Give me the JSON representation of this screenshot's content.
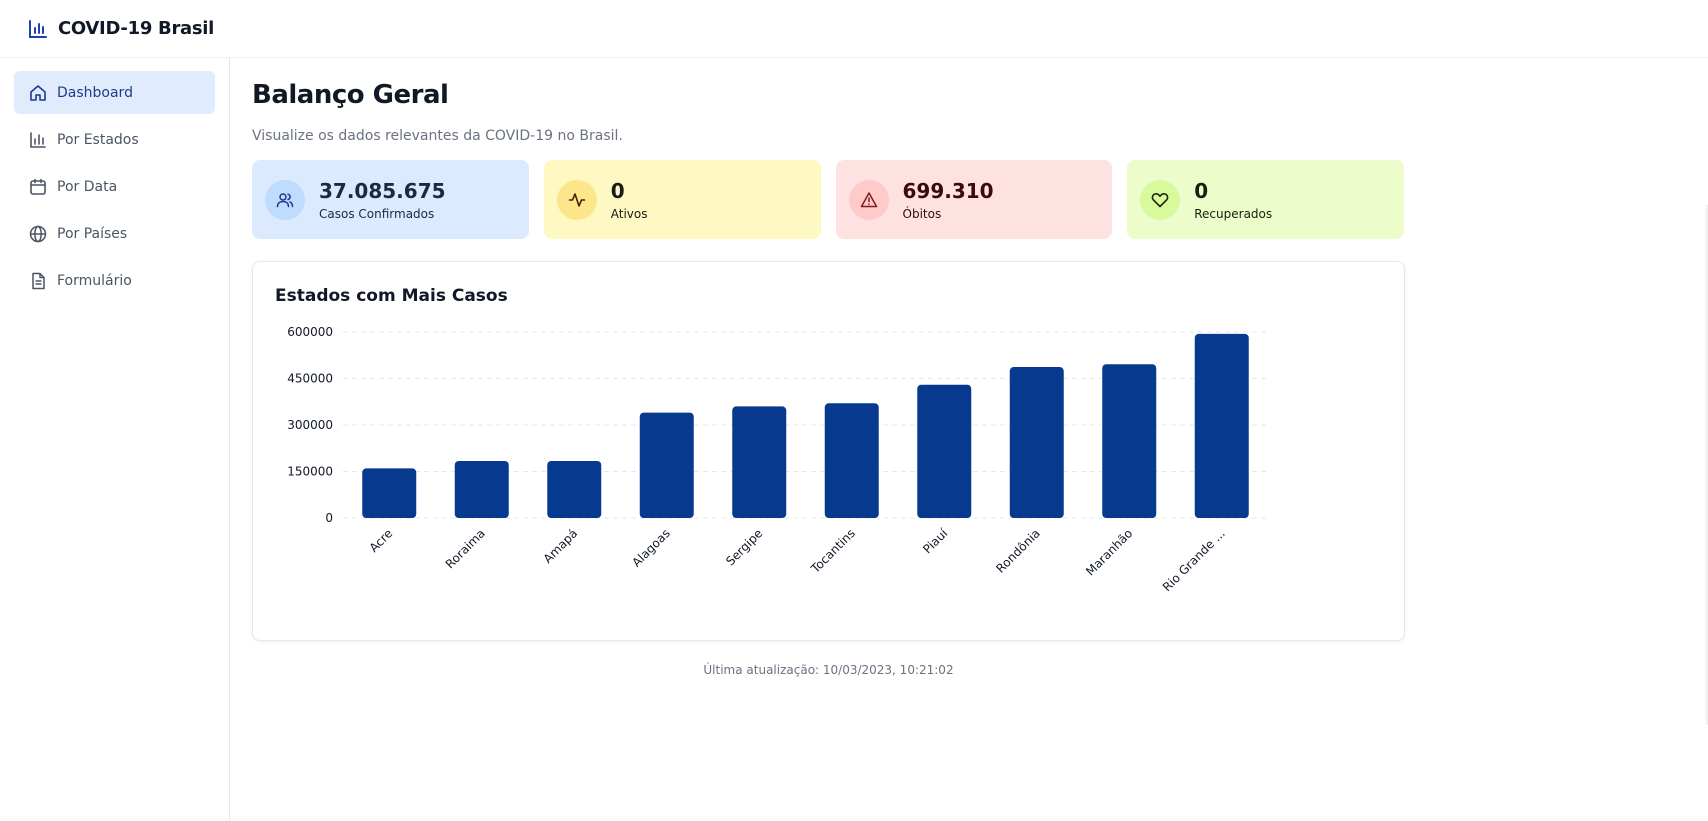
{
  "app": {
    "title": "COVID-19 Brasil",
    "icon": "bar-chart-icon"
  },
  "sidebar": {
    "items": [
      {
        "label": "Dashboard",
        "icon": "home-icon",
        "active": true
      },
      {
        "label": "Por Estados",
        "icon": "bar-chart-icon",
        "active": false
      },
      {
        "label": "Por Data",
        "icon": "calendar-icon",
        "active": false
      },
      {
        "label": "Por Países",
        "icon": "globe-icon",
        "active": false
      },
      {
        "label": "Formulário",
        "icon": "document-icon",
        "active": false
      }
    ]
  },
  "page": {
    "title": "Balanço Geral",
    "subtitle": "Visualize os dados relevantes da COVID-19 no Brasil."
  },
  "cards": [
    {
      "value": "37.085.675",
      "label": "Casos Confirmados",
      "icon": "users-icon",
      "bg": "#dbeafe",
      "circle": "#bfdbfe",
      "color": "#1e3a8a"
    },
    {
      "value": "0",
      "label": "Ativos",
      "icon": "activity-icon",
      "bg": "#fef9c3",
      "circle": "#fde68a",
      "color": "#422006"
    },
    {
      "value": "699.310",
      "label": "Óbitos",
      "icon": "alert-triangle-icon",
      "bg": "#fee2e2",
      "circle": "#fecaca",
      "color": "#450a0a"
    },
    {
      "value": "0",
      "label": "Recuperados",
      "icon": "heart-icon",
      "bg": "#ecfccb",
      "circle": "#d9f99d",
      "color": "#1a2e05"
    }
  ],
  "chart": {
    "title": "Estados com Mais Casos"
  },
  "chart_data": {
    "type": "bar",
    "title": "Estados com Mais Casos",
    "categories": [
      "Acre",
      "Roraima",
      "Amapá",
      "Alagoas",
      "Sergipe",
      "Tocantins",
      "Piauí",
      "Rondônia",
      "Maranhão",
      "Rio Grande ..."
    ],
    "values": [
      160000,
      184000,
      184000,
      340000,
      360000,
      370000,
      430000,
      487000,
      496000,
      594000
    ],
    "yticks": [
      "0",
      "150000",
      "300000",
      "450000",
      "600000"
    ],
    "ylim": [
      0,
      600000
    ],
    "grid": true,
    "bar_color": "#073a8f"
  },
  "footer": {
    "last_update": "Última atualização: 10/03/2023, 10:21:02"
  }
}
